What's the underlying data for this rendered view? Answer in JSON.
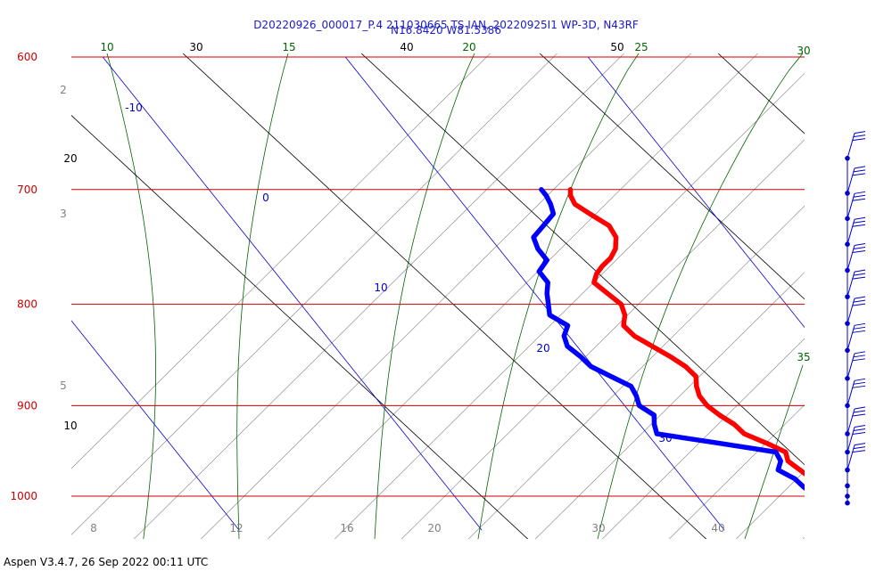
{
  "title_line1": "D20220926_000017_P.4 211030665 TS IAN, 20220925I1 WP-3D, N43RF",
  "title_line2": "N16.8420 W81.5386",
  "footer": "Aspen V3.4.7, 26 Sep 2022  00:11 UTC",
  "colors": {
    "isobar": "#cc0000",
    "isotherm": "#0000cc",
    "dry_adiabat": "#000000",
    "moist_adiabat": "#006400",
    "mixing_ratio": "#808080",
    "temperature": "#ff0000",
    "dewpoint": "#0000ff",
    "wind": "#0000cc"
  },
  "chart_data": {
    "type": "line",
    "title": "D20220926_000017_P.4 211030665 TS IAN, 20220925I1 WP-3D, N43RF",
    "subtitle": "N16.8420 W81.5386",
    "y_scale": "log",
    "ylim": [
      1040,
      600
    ],
    "isobars": [
      600,
      700,
      800,
      900,
      1000
    ],
    "isotherm_labels": [
      "-10",
      "0",
      "10",
      "20",
      "30"
    ],
    "dry_adiabat_labels": [
      "30",
      "40",
      "50",
      "20",
      "10"
    ],
    "moist_adiabat_labels": [
      "10",
      "15",
      "20",
      "25",
      "30",
      "35"
    ],
    "mixing_ratio_left_labels": [
      "2",
      "3",
      "5"
    ],
    "mixing_ratio_bottom_labels": [
      "8",
      "12",
      "16",
      "20",
      "30",
      "40"
    ],
    "series": [
      {
        "key": "temperature",
        "pressure": [
          700,
          705,
          712,
          720,
          730,
          740,
          750,
          758,
          765,
          772,
          780,
          790,
          800,
          810,
          820,
          830,
          840,
          850,
          860,
          870,
          880,
          890,
          900,
          910,
          920,
          930,
          940,
          950,
          960,
          970,
          980,
          990,
          1000,
          1005,
          1008
        ],
        "values": [
          14.9,
          14.7,
          14.6,
          14.9,
          15.3,
          15.2,
          14.8,
          14.3,
          13.7,
          13.2,
          12.8,
          13.0,
          13.2,
          13.0,
          12.6,
          12.7,
          13.1,
          13.5,
          13.8,
          13.9,
          13.6,
          13.4,
          13.4,
          13.6,
          13.9,
          14.0,
          14.6,
          15.1,
          14.9,
          15.1,
          15.3,
          15.8,
          16.7,
          17.5,
          18.6
        ]
      },
      {
        "key": "dewpoint",
        "pressure": [
          700,
          705,
          712,
          720,
          730,
          740,
          750,
          760,
          770,
          780,
          790,
          800,
          810,
          820,
          830,
          840,
          850,
          860,
          870,
          880,
          890,
          900,
          910,
          920,
          930,
          940,
          950,
          960,
          970,
          980,
          990,
          1000,
          1005,
          1008
        ],
        "values": [
          13.7,
          13.7,
          13.6,
          13.4,
          12.6,
          11.8,
          11.6,
          11.6,
          10.9,
          10.9,
          10.5,
          10.2,
          9.9,
          10.3,
          9.8,
          9.6,
          9.8,
          9.9,
          10.4,
          10.9,
          10.8,
          10.6,
          10.9,
          10.6,
          10.4,
          12.6,
          14.7,
          14.6,
          14.2,
          14.6,
          14.7,
          14.9,
          15.3,
          16.1
        ]
      }
    ],
    "wind_pressures": [
      675,
      703,
      724,
      746,
      769,
      793,
      818,
      844,
      872,
      900,
      930,
      950,
      970,
      988,
      1000,
      1008
    ]
  }
}
